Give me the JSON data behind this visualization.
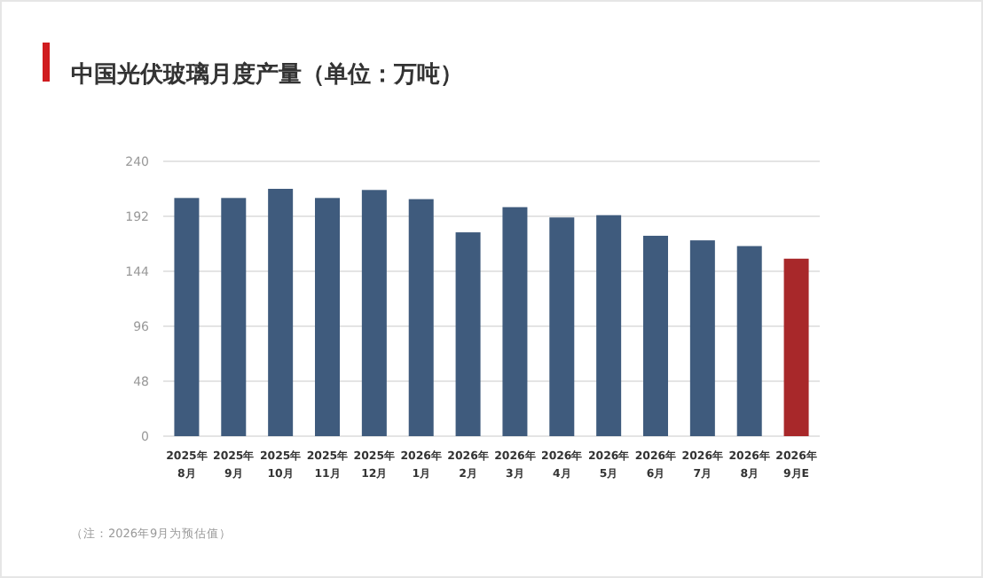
{
  "chart_data": {
    "type": "bar",
    "title": "中国光伏玻璃月度产量（单位：万吨）",
    "categories": [
      "2025年\n8月",
      "2025年\n9月",
      "2025年\n10月",
      "2025年\n11月",
      "2025年\n12月",
      "2026年\n1月",
      "2026年\n2月",
      "2026年\n3月",
      "2026年\n4月",
      "2026年\n5月",
      "2026年\n6月",
      "2026年\n7月",
      "2026年\n8月",
      "2026年\n9月E"
    ],
    "values": [
      208,
      208,
      216,
      208,
      215,
      207,
      178,
      200,
      191,
      193,
      175,
      171,
      166,
      155
    ],
    "colors": [
      "#3f5b7d",
      "#3f5b7d",
      "#3f5b7d",
      "#3f5b7d",
      "#3f5b7d",
      "#3f5b7d",
      "#3f5b7d",
      "#3f5b7d",
      "#3f5b7d",
      "#3f5b7d",
      "#3f5b7d",
      "#3f5b7d",
      "#3f5b7d",
      "#a8282a"
    ],
    "ylim": [
      0,
      240
    ],
    "yticks": [
      0,
      48,
      96,
      144,
      192,
      240
    ],
    "grid": "y",
    "annotations": [
      "（注：2026年9月为预估值）"
    ]
  }
}
